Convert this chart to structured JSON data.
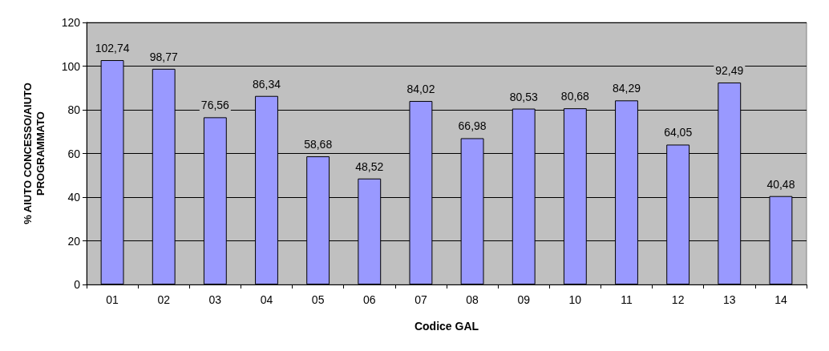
{
  "chart_data": {
    "type": "bar",
    "xlabel": "Codice GAL",
    "ylabel": "% AIUTO CONCESSO/AIUTO\nPROGRAMMATO",
    "categories": [
      "01",
      "02",
      "03",
      "04",
      "05",
      "06",
      "07",
      "08",
      "09",
      "10",
      "11",
      "12",
      "13",
      "14"
    ],
    "values": [
      102.74,
      98.77,
      76.56,
      86.34,
      58.68,
      48.52,
      84.02,
      66.98,
      80.53,
      80.68,
      84.29,
      64.05,
      92.49,
      40.48
    ],
    "value_labels": [
      "102,74",
      "98,77",
      "76,56",
      "86,34",
      "58,68",
      "48,52",
      "84,02",
      "66,98",
      "80,53",
      "80,68",
      "84,29",
      "64,05",
      "92,49",
      "40,48"
    ],
    "color": "#9999ff",
    "ylim": [
      0,
      120
    ],
    "yticks": [
      0,
      20,
      40,
      60,
      80,
      100,
      120
    ],
    "grid": "y"
  }
}
